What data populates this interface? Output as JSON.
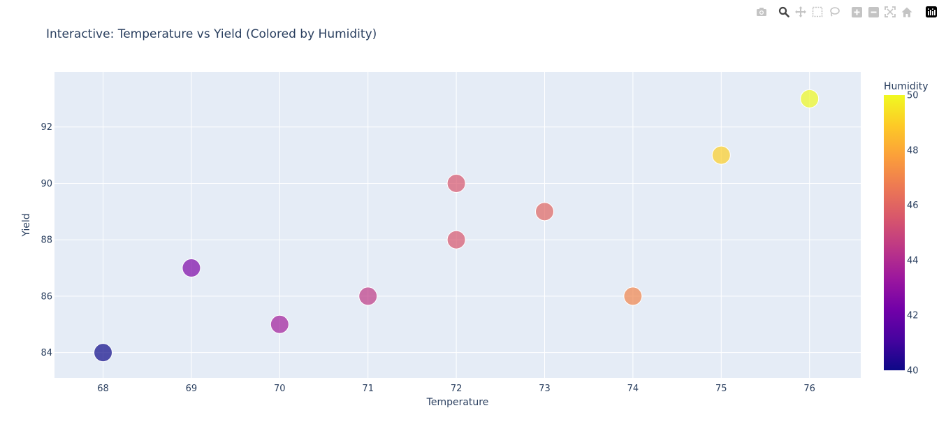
{
  "modebar": {
    "buttons": [
      {
        "icon": "camera-icon",
        "name": "download-plot-button"
      },
      {
        "icon": "zoom-icon",
        "name": "zoom-button",
        "active": true
      },
      {
        "icon": "pan-icon",
        "name": "pan-button"
      },
      {
        "icon": "box-select-icon",
        "name": "box-select-button"
      },
      {
        "icon": "lasso-select-icon",
        "name": "lasso-select-button"
      },
      {
        "icon": "zoom-in-icon",
        "name": "zoom-in-button"
      },
      {
        "icon": "zoom-out-icon",
        "name": "zoom-out-button"
      },
      {
        "icon": "autoscale-icon",
        "name": "autoscale-button"
      },
      {
        "icon": "home-icon",
        "name": "reset-axes-button"
      },
      {
        "icon": "plotly-logo-icon",
        "name": "plotly-logo"
      }
    ]
  },
  "chart_data": {
    "type": "scatter",
    "title": "Interactive: Temperature vs Yield (Colored by Humidity)",
    "xlabel": "Temperature",
    "ylabel": "Yield",
    "xlim": [
      67.45,
      76.58
    ],
    "ylim": [
      83.1,
      93.95
    ],
    "xticks": [
      68,
      69,
      70,
      71,
      72,
      73,
      74,
      75,
      76
    ],
    "yticks": [
      84,
      86,
      88,
      90,
      92
    ],
    "grid": true,
    "colorbar": {
      "title": "Humidity",
      "range": [
        40,
        50
      ],
      "ticks": [
        40,
        42,
        44,
        46,
        48,
        50
      ],
      "colorscale": [
        "#0d0887",
        "#46039f",
        "#7201a8",
        "#9c179e",
        "#bd3786",
        "#d8576b",
        "#ed7953",
        "#fb9f3a",
        "#fdca26",
        "#f0f921"
      ]
    },
    "marker_opacity": 0.7,
    "points": [
      {
        "x": 68,
        "y": 84,
        "humidity": 40
      },
      {
        "x": 69,
        "y": 87,
        "humidity": 42.5
      },
      {
        "x": 70,
        "y": 85,
        "humidity": 43.5
      },
      {
        "x": 71,
        "y": 86,
        "humidity": 44.5
      },
      {
        "x": 72,
        "y": 90,
        "humidity": 45.5
      },
      {
        "x": 72,
        "y": 88,
        "humidity": 45.5
      },
      {
        "x": 73,
        "y": 89,
        "humidity": 46
      },
      {
        "x": 74,
        "y": 86,
        "humidity": 47
      },
      {
        "x": 75,
        "y": 91,
        "humidity": 49
      },
      {
        "x": 76,
        "y": 93,
        "humidity": 50
      }
    ],
    "plot_bg": "#e5ecf6",
    "text_color": "#2a3f5f"
  }
}
